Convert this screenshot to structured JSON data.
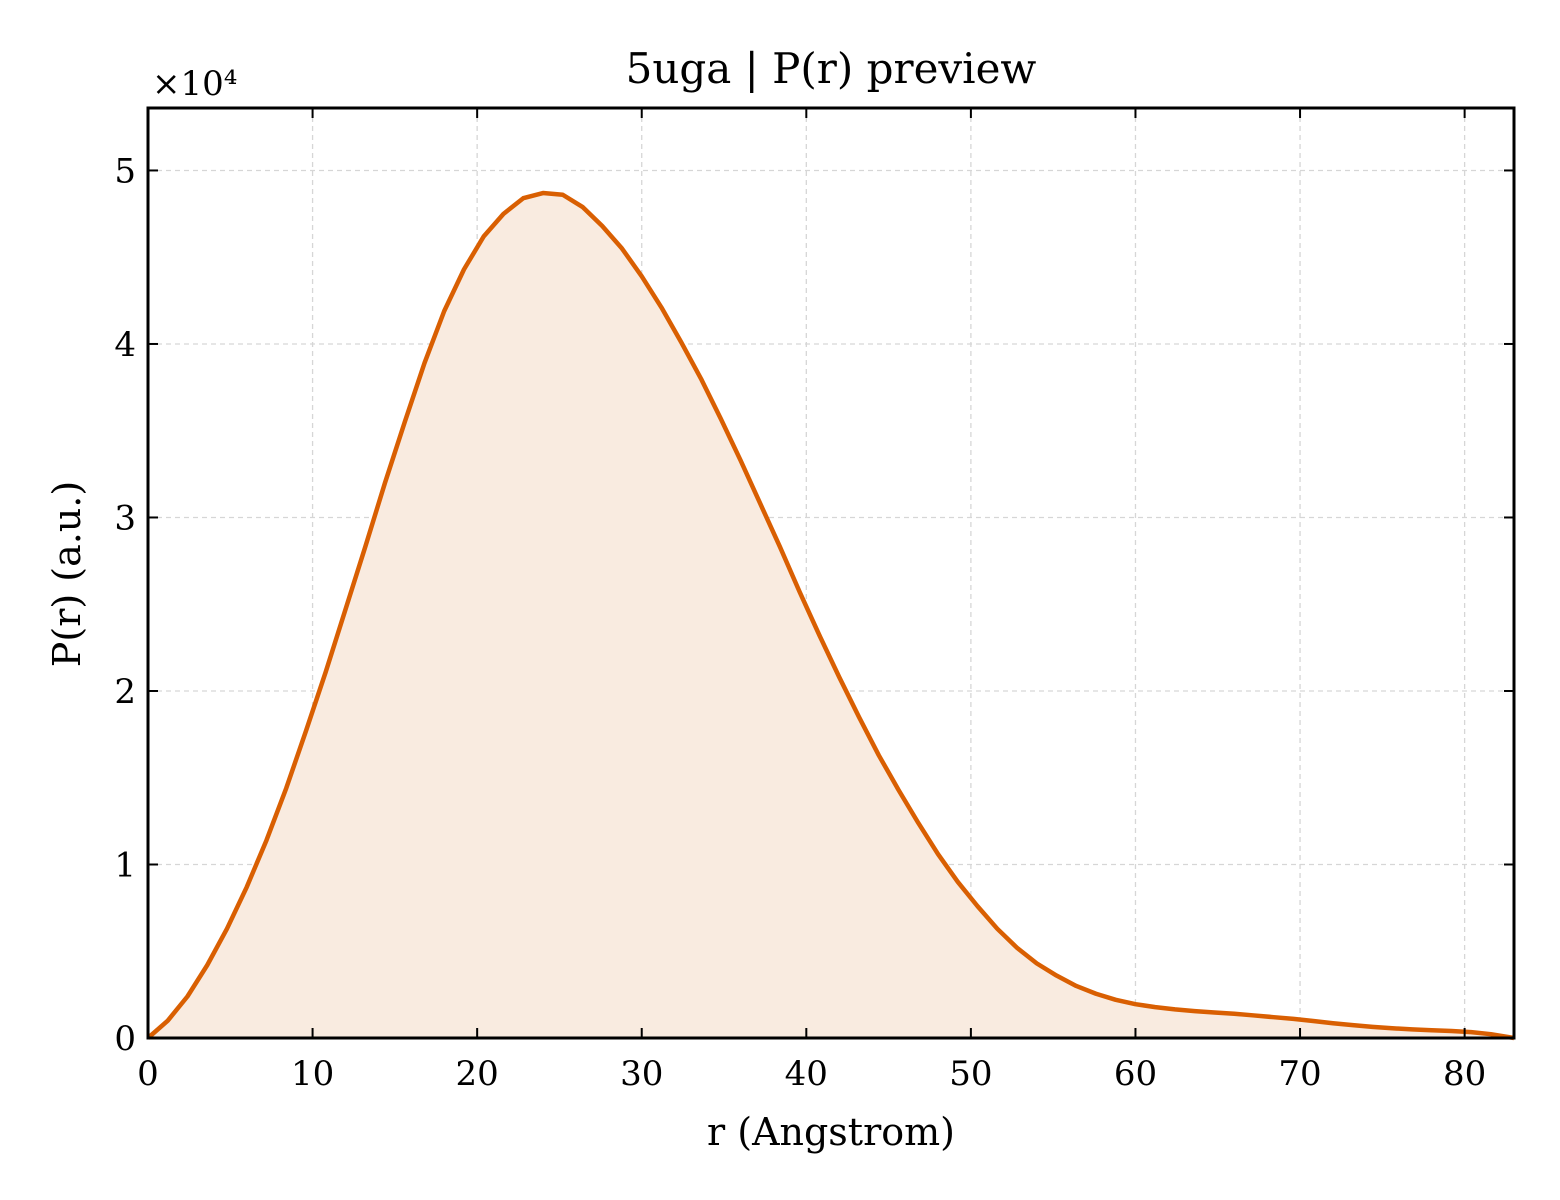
{
  "chart_data": {
    "type": "area",
    "title": "5uga | P(r) preview",
    "xlabel": "r (Angstrom)",
    "ylabel": "P(r) (a.u.)",
    "y_multiplier_label": "×10⁴",
    "y_scale_factor": 10000,
    "xlim": [
      0,
      83
    ],
    "ylim": [
      0,
      53600
    ],
    "x_ticks": [
      0,
      10,
      20,
      30,
      40,
      50,
      60,
      70,
      80
    ],
    "y_ticks": [
      0,
      10000,
      20000,
      30000,
      40000,
      50000
    ],
    "y_tick_labels": [
      "0",
      "1",
      "2",
      "3",
      "4",
      "5"
    ],
    "grid": true,
    "line_color": "#d95f02",
    "fill_color": "#f9ebe0",
    "series": [
      {
        "x": [
          0,
          1.2,
          2.4,
          3.6,
          4.8,
          6.0,
          7.2,
          8.4,
          9.6,
          10.8,
          12.0,
          13.2,
          14.4,
          15.6,
          16.8,
          18.0,
          19.2,
          20.4,
          21.6,
          22.8,
          24.0,
          25.2,
          26.4,
          27.6,
          28.8,
          30.0,
          31.2,
          32.4,
          33.6,
          34.8,
          36.0,
          37.2,
          38.4,
          39.6,
          40.8,
          42.0,
          43.2,
          44.4,
          45.6,
          46.8,
          48.0,
          49.2,
          50.4,
          51.6,
          52.8,
          54.0,
          55.2,
          56.4,
          57.6,
          58.8,
          60.0,
          61.2,
          62.4,
          63.6,
          64.8,
          66.0,
          67.2,
          68.4,
          69.6,
          70.8,
          72.0,
          73.2,
          74.4,
          75.6,
          76.8,
          78.0,
          79.2,
          80.4,
          81.6,
          83.0
        ],
        "y": [
          0,
          1000,
          2400,
          4200,
          6300,
          8700,
          11400,
          14400,
          17700,
          21100,
          24700,
          28300,
          32000,
          35500,
          38900,
          41900,
          44300,
          46200,
          47500,
          48400,
          48700,
          48600,
          47900,
          46800,
          45500,
          43900,
          42100,
          40100,
          38000,
          35700,
          33300,
          30800,
          28300,
          25700,
          23200,
          20800,
          18500,
          16300,
          14300,
          12400,
          10600,
          9000,
          7600,
          6300,
          5200,
          4300,
          3600,
          3000,
          2550,
          2200,
          1950,
          1780,
          1650,
          1550,
          1470,
          1400,
          1300,
          1200,
          1100,
          980,
          850,
          740,
          640,
          560,
          500,
          450,
          400,
          340,
          220,
          0
        ]
      }
    ]
  }
}
